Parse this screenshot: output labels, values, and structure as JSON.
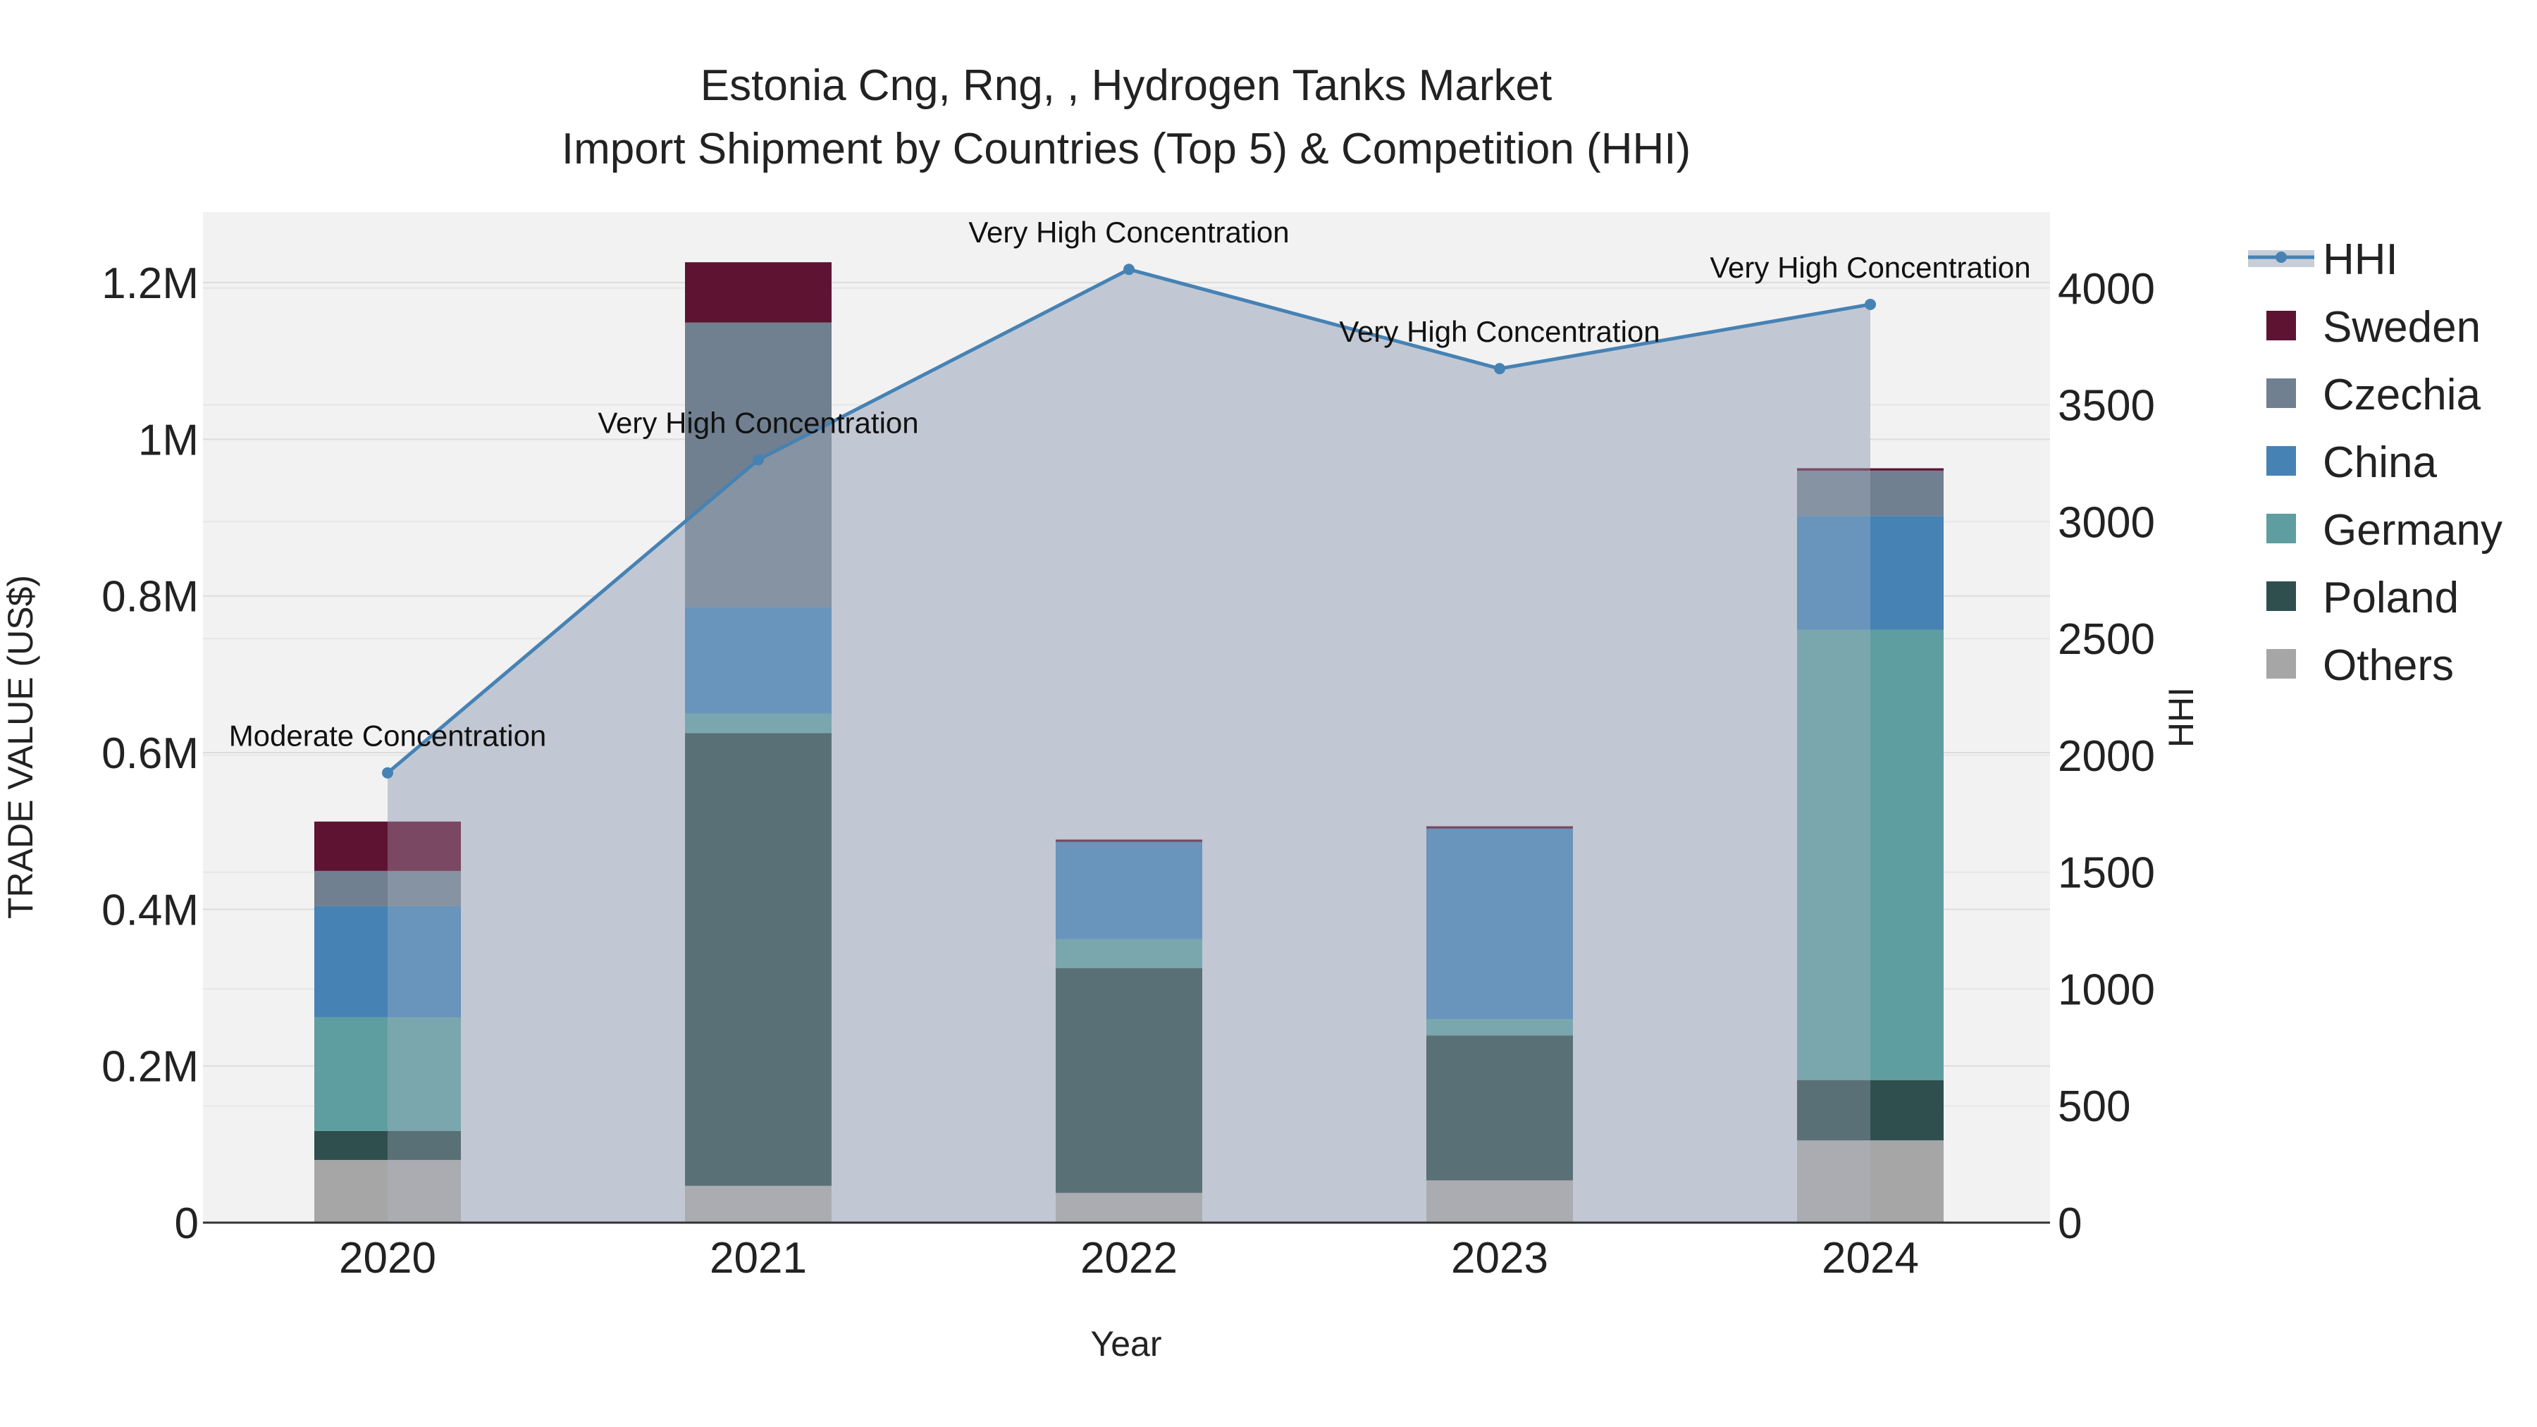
{
  "chart_data": {
    "type": "bar",
    "stacked": true,
    "title_line1": "Estonia Cng, Rng, , Hydrogen Tanks Market",
    "title_line2": "Import Shipment by Countries (Top 5) & Competition (HHI)",
    "xlabel": "Year",
    "ylabel": "TRADE VALUE (US$)",
    "y2label": "HHI",
    "categories": [
      "2020",
      "2021",
      "2022",
      "2023",
      "2024"
    ],
    "ylim": [
      0,
      1290000
    ],
    "y2lim": [
      0,
      4325
    ],
    "y_ticks": [
      {
        "value": 0,
        "label": "0"
      },
      {
        "value": 200000,
        "label": "0.2M"
      },
      {
        "value": 400000,
        "label": "0.4M"
      },
      {
        "value": 600000,
        "label": "0.6M"
      },
      {
        "value": 800000,
        "label": "0.8M"
      },
      {
        "value": 1000000,
        "label": "1M"
      },
      {
        "value": 1200000,
        "label": "1.2M"
      }
    ],
    "y2_ticks": [
      {
        "value": 0,
        "label": "0"
      },
      {
        "value": 500,
        "label": "500"
      },
      {
        "value": 1000,
        "label": "1000"
      },
      {
        "value": 1500,
        "label": "1500"
      },
      {
        "value": 2000,
        "label": "2000"
      },
      {
        "value": 2500,
        "label": "2500"
      },
      {
        "value": 3000,
        "label": "3000"
      },
      {
        "value": 3500,
        "label": "3500"
      },
      {
        "value": 4000,
        "label": "4000"
      }
    ],
    "series": [
      {
        "name": "Others",
        "color": "#a6a6a6",
        "values": [
          80000,
          47000,
          38000,
          54000,
          105000
        ]
      },
      {
        "name": "Poland",
        "color": "#2f4f4f",
        "values": [
          37000,
          578000,
          287000,
          185000,
          77000
        ]
      },
      {
        "name": "Germany",
        "color": "#5f9ea0",
        "values": [
          145000,
          25000,
          37000,
          21000,
          575000
        ]
      },
      {
        "name": "China",
        "color": "#4682b4",
        "values": [
          142000,
          136000,
          124000,
          243000,
          145000
        ]
      },
      {
        "name": "Czechia",
        "color": "#708090",
        "values": [
          45000,
          363000,
          0,
          0,
          58000
        ]
      },
      {
        "name": "Sweden",
        "color": "#5f1333",
        "values": [
          63000,
          77000,
          3000,
          3000,
          3000
        ]
      }
    ],
    "hhi": {
      "name": "HHI",
      "color": "#4682b4",
      "values": [
        1925,
        3265,
        4080,
        3655,
        3930
      ],
      "annotations": [
        "Moderate Concentration",
        "Very High Concentration",
        "Very High Concentration",
        "Very High Concentration",
        "Very High Concentration"
      ]
    },
    "legend": [
      "HHI",
      "Sweden",
      "Czechia",
      "China",
      "Germany",
      "Poland",
      "Others"
    ],
    "legend_position": "right"
  }
}
